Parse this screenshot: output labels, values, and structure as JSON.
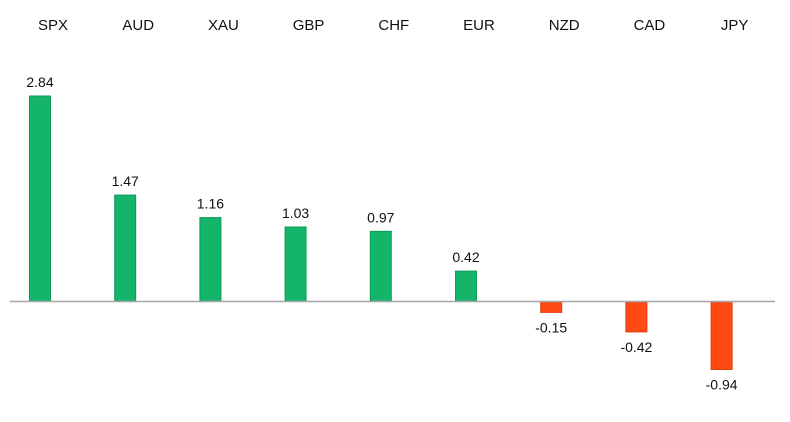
{
  "chart_data": {
    "type": "bar",
    "categories": [
      "SPX",
      "AUD",
      "XAU",
      "GBP",
      "CHF",
      "EUR",
      "NZD",
      "CAD",
      "JPY"
    ],
    "values": [
      2.84,
      1.47,
      1.16,
      1.03,
      0.97,
      0.42,
      -0.15,
      -0.42,
      -0.94
    ],
    "value_labels": [
      "2.84",
      "1.47",
      "1.16",
      "1.03",
      "0.97",
      "0.42",
      "-0.15",
      "-0.42",
      "-0.94"
    ],
    "title": "",
    "xlabel": "",
    "ylabel": "",
    "ylim": [
      -1.2,
      3.2
    ],
    "grid": false,
    "legend": "none",
    "category_axis_position": "top",
    "colors": {
      "positive": "#14b46a",
      "positive_edge": "#0f9a58",
      "negative": "#ff4a14",
      "negative_edge": "#e03d0c",
      "axis": "#a6a6a6",
      "text": "#111111"
    }
  }
}
